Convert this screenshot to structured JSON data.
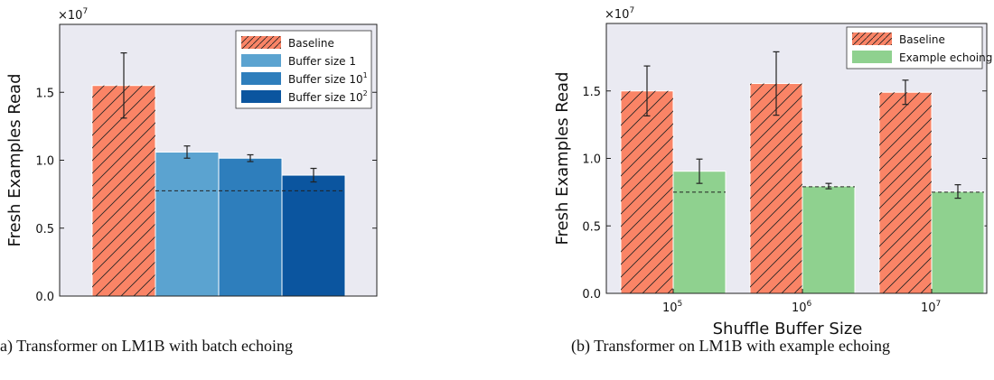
{
  "chart_data": [
    {
      "type": "bar",
      "panel": "a",
      "caption": "a) Transformer on LM1B with batch echoing",
      "ylabel": "Fresh Examples Read",
      "scale_label": "×10",
      "scale_exponent": "7",
      "ylim": [
        0,
        2.0
      ],
      "yticks": [
        0.0,
        0.5,
        1.0,
        1.5
      ],
      "ytick_labels": [
        "0.0",
        "0.5",
        "1.0",
        "1.5"
      ],
      "categories": [
        ""
      ],
      "reference_line": 0.775,
      "legend_position": "top-right",
      "series": [
        {
          "name": "Baseline",
          "name_sup": "",
          "color": "#fa8466",
          "hatch": true,
          "values": [
            1.55
          ],
          "err": [
            0.24
          ]
        },
        {
          "name": "Buffer size 1",
          "name_sup": "",
          "color": "#5ba3d0",
          "hatch": false,
          "values": [
            1.06
          ],
          "err": [
            0.045
          ]
        },
        {
          "name": "Buffer size 10",
          "name_sup": "1",
          "color": "#2e7ebc",
          "hatch": false,
          "values": [
            1.015
          ],
          "err": [
            0.025
          ]
        },
        {
          "name": "Buffer size 10",
          "name_sup": "2",
          "color": "#0b559f",
          "hatch": false,
          "values": [
            0.89
          ],
          "err": [
            0.05
          ]
        }
      ]
    },
    {
      "type": "bar",
      "panel": "b",
      "caption": "(b) Transformer on LM1B with example echoing",
      "ylabel": "Fresh Examples Read",
      "xlabel": "Shuffle Buffer Size",
      "scale_label": "×10",
      "scale_exponent": "7",
      "ylim": [
        0,
        2.0
      ],
      "yticks": [
        0.0,
        0.5,
        1.0,
        1.5
      ],
      "ytick_labels": [
        "0.0",
        "0.5",
        "1.0",
        "1.5"
      ],
      "categories": [
        {
          "base": "10",
          "exp": "5"
        },
        {
          "base": "10",
          "exp": "6"
        },
        {
          "base": "10",
          "exp": "7"
        }
      ],
      "reference_lines": [
        0.75,
        0.79,
        0.75
      ],
      "legend_position": "top-right",
      "series": [
        {
          "name": "Baseline",
          "name_sup": "",
          "color": "#fa8466",
          "hatch": true,
          "values": [
            1.5,
            1.555,
            1.49
          ],
          "err": [
            0.185,
            0.235,
            0.09
          ]
        },
        {
          "name": "Example echoing",
          "name_sup": "",
          "color": "#8fd18f",
          "hatch": false,
          "values": [
            0.905,
            0.795,
            0.755
          ],
          "err": [
            0.09,
            0.02,
            0.05
          ]
        }
      ]
    }
  ]
}
